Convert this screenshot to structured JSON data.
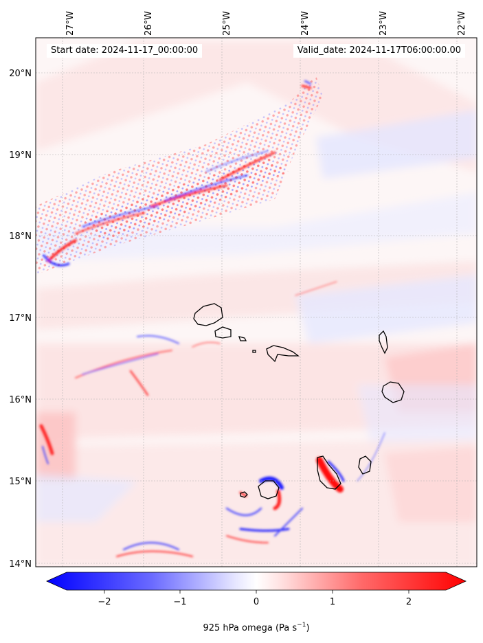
{
  "map": {
    "start_date": "Start date: 2024-11-17_00:00:00",
    "valid_date": "Valid_date: 2024-11-17T06:00:00.00",
    "lon_labels": [
      "27°W",
      "26°W",
      "25°W",
      "24°W",
      "23°W",
      "22°W"
    ],
    "lat_labels": [
      "20°N",
      "19°N",
      "18°N",
      "17°N",
      "16°N",
      "15°N",
      "14°N"
    ],
    "colorbar": {
      "ticks": [
        "−2",
        "−1",
        "0",
        "1",
        "2"
      ],
      "label_main": "925 hPa omega (Pa s",
      "label_exp": "−1",
      "label_end": ")",
      "colors": {
        "neg": "#0000ff",
        "mid": "#ffffff",
        "pos": "#ff0000"
      }
    },
    "features": [
      "land-outline",
      "gridlines"
    ]
  }
}
